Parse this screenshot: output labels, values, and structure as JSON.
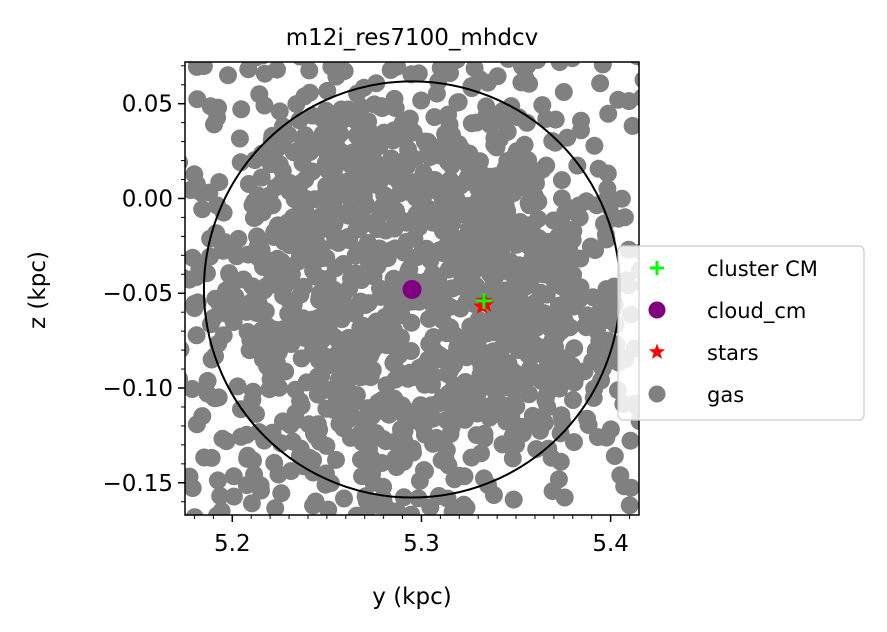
{
  "chart_data": {
    "type": "scatter",
    "title": "m12i_res7100_mhdcv",
    "xlabel": "y (kpc)",
    "ylabel": "z (kpc)",
    "xlim": [
      5.175,
      5.415
    ],
    "ylim": [
      -0.167,
      0.072
    ],
    "xticks": [
      5.2,
      5.3,
      5.4
    ],
    "xtick_labels": [
      "5.2",
      "5.3",
      "5.4"
    ],
    "yticks": [
      0.05,
      0.0,
      -0.05,
      -0.1,
      -0.15
    ],
    "ytick_labels": [
      "0.05",
      "0.00",
      "−0.05",
      "−0.10",
      "−0.15"
    ],
    "grid": false,
    "legend_position": "center-right, outside axes",
    "legend": [
      {
        "label": "cluster CM",
        "marker": "plus",
        "color": "#00ff00"
      },
      {
        "label": "cloud_cm",
        "marker": "circle",
        "color": "#800080"
      },
      {
        "label": "stars",
        "marker": "star",
        "color": "#ff0000"
      },
      {
        "label": "gas",
        "marker": "circle",
        "color": "#808080"
      }
    ],
    "series": [
      {
        "name": "gas",
        "marker": "circle",
        "color": "#808080",
        "count": 1400,
        "note": "dense cloud of gas particles filling the axes"
      },
      {
        "name": "cloud_cm",
        "marker": "circle",
        "color": "#800080",
        "x": [
          5.295
        ],
        "y": [
          -0.048
        ]
      },
      {
        "name": "stars",
        "marker": "star",
        "color": "#ff0000",
        "x": [
          5.333,
          5.334,
          5.332
        ],
        "y": [
          -0.054,
          -0.056,
          -0.057
        ]
      },
      {
        "name": "cluster CM",
        "marker": "plus",
        "color": "#00ff00",
        "x": [
          5.333
        ],
        "y": [
          -0.054
        ]
      }
    ],
    "circle": {
      "center_x": 5.295,
      "center_y": -0.048,
      "radius": 0.11,
      "color": "#000000"
    }
  }
}
